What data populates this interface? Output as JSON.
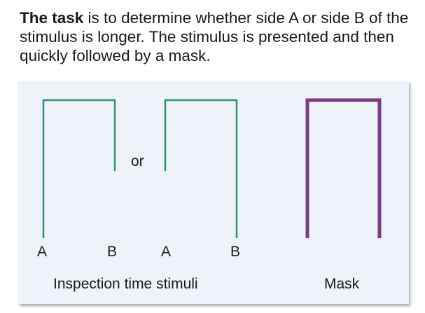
{
  "task": {
    "lead": "The task",
    "rest": " is to determine whether side A or side B of the stimulus is longer. The stimulus is presented and then quickly followed by a mask."
  },
  "diagram": {
    "or_label": "or",
    "stimulus_1": {
      "left_label": "A",
      "right_label": "B"
    },
    "stimulus_2": {
      "left_label": "A",
      "right_label": "B"
    },
    "caption_stimuli": "Inspection time stimuli",
    "caption_mask": "Mask"
  },
  "colors": {
    "stimulus": "#2a9577",
    "mask": "#7b3b87",
    "panel": "#eef2f9"
  }
}
